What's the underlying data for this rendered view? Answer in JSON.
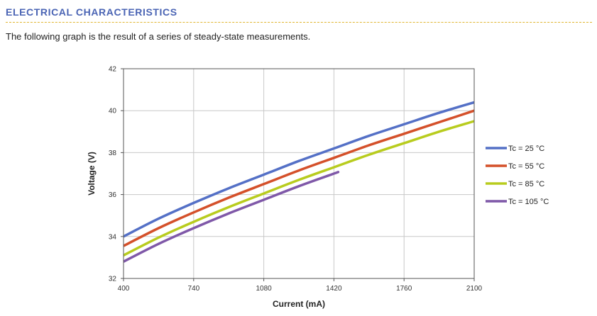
{
  "header": {
    "section_title": "ELECTRICAL CHARACTERISTICS",
    "intro_text": "The following graph is the result of a series of steady-state measurements."
  },
  "colors": {
    "title": "#4a64b4",
    "rule": "#e0b530",
    "grid": "#c8c8c8"
  },
  "chart_data": {
    "type": "line",
    "title": "",
    "xlabel": "Current (mA)",
    "ylabel": "Voltage (V)",
    "xlim": [
      400,
      2100
    ],
    "ylim": [
      32,
      42
    ],
    "xticks": [
      "400",
      "740",
      "1080",
      "1420",
      "1760",
      "2100"
    ],
    "yticks": [
      "32",
      "34",
      "36",
      "38",
      "40",
      "42"
    ],
    "grid": true,
    "legend_position": "right",
    "series": [
      {
        "name": "Tc = 25 °C",
        "color": "#5470c6",
        "x": [
          400,
          570,
          740,
          910,
          1080,
          1250,
          1420,
          1590,
          1760,
          1930,
          2100
        ],
        "y": [
          34.0,
          34.85,
          35.6,
          36.3,
          36.95,
          37.6,
          38.2,
          38.8,
          39.35,
          39.9,
          40.4
        ]
      },
      {
        "name": "Tc = 55 °C",
        "color": "#d4502a",
        "x": [
          400,
          570,
          740,
          910,
          1080,
          1250,
          1420,
          1590,
          1760,
          1930,
          2100
        ],
        "y": [
          33.55,
          34.4,
          35.15,
          35.85,
          36.5,
          37.15,
          37.75,
          38.35,
          38.9,
          39.45,
          40.0
        ]
      },
      {
        "name": "Tc = 85 °C",
        "color": "#b8cc1e",
        "x": [
          400,
          570,
          740,
          910,
          1080,
          1250,
          1420,
          1590,
          1760,
          1930,
          2100
        ],
        "y": [
          33.1,
          33.95,
          34.7,
          35.4,
          36.05,
          36.7,
          37.3,
          37.9,
          38.45,
          39.0,
          39.5
        ]
      },
      {
        "name": "Tc = 105 °C",
        "color": "#7f58a8",
        "x": [
          400,
          570,
          740,
          910,
          1080,
          1250,
          1420,
          1440
        ],
        "y": [
          32.8,
          33.65,
          34.4,
          35.1,
          35.75,
          36.4,
          37.0,
          37.07
        ]
      }
    ]
  }
}
